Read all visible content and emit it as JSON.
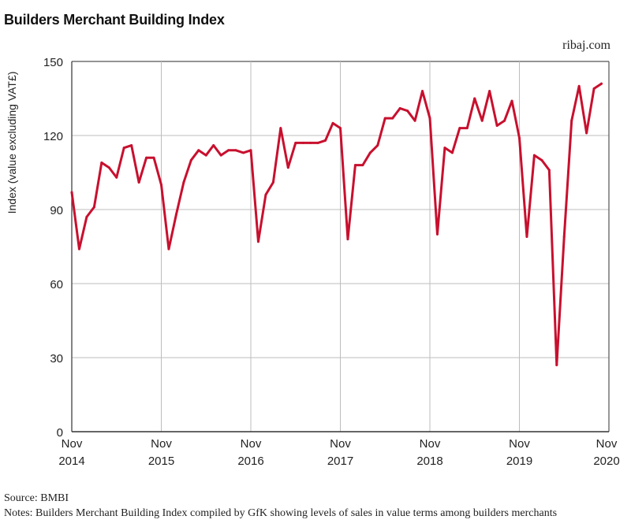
{
  "title": "Builders Merchant Building Index",
  "brand": "ribaj.com",
  "source": "Source: BMBI",
  "notes": "Notes: Builders Merchant Building Index compiled by GfK showing levels of sales in value terms among builders merchants",
  "chart_data": {
    "type": "line",
    "title": "Builders Merchant Building Index",
    "xlabel": "",
    "ylabel": "Index (value excluding VAT£)",
    "ylim": [
      0,
      150
    ],
    "yticks": [
      "0",
      "30",
      "60",
      "90",
      "120",
      "150"
    ],
    "xlim": [
      "2014-11",
      "2020-11"
    ],
    "xticks": [
      {
        "month": "Nov",
        "year": "2014"
      },
      {
        "month": "Nov",
        "year": "2015"
      },
      {
        "month": "Nov",
        "year": "2016"
      },
      {
        "month": "Nov",
        "year": "2017"
      },
      {
        "month": "Nov",
        "year": "2018"
      },
      {
        "month": "Nov",
        "year": "2019"
      },
      {
        "month": "Nov",
        "year": "2020"
      }
    ],
    "grid": true,
    "legend": "none",
    "line_color": "#c8102e",
    "series": [
      {
        "x": [
          "2014-11",
          "2014-12",
          "2015-01",
          "2015-02",
          "2015-03",
          "2015-04",
          "2015-05",
          "2015-06",
          "2015-07",
          "2015-08",
          "2015-09",
          "2015-10",
          "2015-11",
          "2015-12",
          "2016-01",
          "2016-02",
          "2016-03",
          "2016-04",
          "2016-05",
          "2016-06",
          "2016-07",
          "2016-08",
          "2016-09",
          "2016-10",
          "2016-11",
          "2016-12",
          "2017-01",
          "2017-02",
          "2017-03",
          "2017-04",
          "2017-05",
          "2017-06",
          "2017-07",
          "2017-08",
          "2017-09",
          "2017-10",
          "2017-11",
          "2017-12",
          "2018-01",
          "2018-02",
          "2018-03",
          "2018-04",
          "2018-05",
          "2018-06",
          "2018-07",
          "2018-08",
          "2018-09",
          "2018-10",
          "2018-11",
          "2018-12",
          "2019-01",
          "2019-02",
          "2019-03",
          "2019-04",
          "2019-05",
          "2019-06",
          "2019-07",
          "2019-08",
          "2019-09",
          "2019-10",
          "2019-11",
          "2019-12",
          "2020-01",
          "2020-02",
          "2020-03",
          "2020-04",
          "2020-05",
          "2020-06",
          "2020-07",
          "2020-08",
          "2020-09",
          "2020-10"
        ],
        "values": [
          97,
          74,
          87,
          91,
          109,
          107,
          103,
          115,
          116,
          101,
          111,
          111,
          100,
          74,
          88,
          101,
          110,
          114,
          112,
          116,
          112,
          114,
          114,
          113,
          114,
          77,
          96,
          101,
          123,
          107,
          117,
          117,
          117,
          117,
          118,
          125,
          123,
          78,
          108,
          108,
          113,
          116,
          127,
          127,
          131,
          130,
          126,
          138,
          127,
          80,
          115,
          113,
          123,
          123,
          135,
          126,
          138,
          124,
          126,
          134,
          119,
          79,
          112,
          110,
          106,
          27,
          79,
          126,
          140,
          121,
          139,
          141
        ]
      }
    ]
  }
}
